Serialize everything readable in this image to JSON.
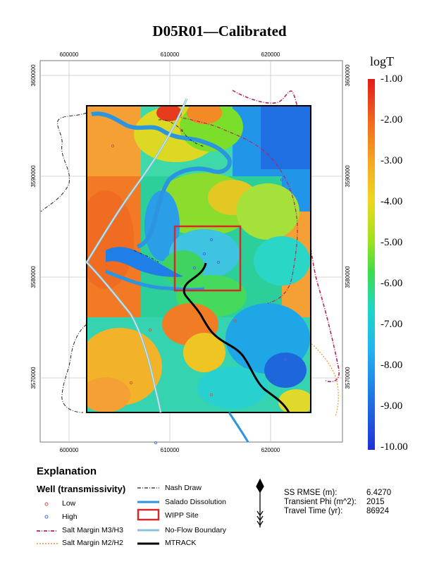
{
  "title": "D05R01—Calibrated",
  "map": {
    "x_ticks": [
      "600000",
      "610000",
      "620000"
    ],
    "y_ticks": [
      "3600000",
      "3590000",
      "3580000",
      "3570000"
    ]
  },
  "colorbar": {
    "title": "logT",
    "ticks": [
      "-1.00",
      "-2.00",
      "-3.00",
      "-4.00",
      "-5.00",
      "-6.00",
      "-7.00",
      "-8.00",
      "-9.00",
      "-10.00"
    ],
    "colors": [
      "#e41a1c",
      "#f26c1c",
      "#f5a623",
      "#eed81e",
      "#9be21f",
      "#3edc4a",
      "#1ed7c6",
      "#22b4ef",
      "#1f7fe6",
      "#2030d8"
    ]
  },
  "explanation": {
    "title": "Explanation",
    "well_title": "Well (transmissivity)",
    "low": "Low",
    "high": "High",
    "salt_m3": "Salt Margin M3/H3",
    "salt_m2": "Salt Margin M2/H2",
    "nash_draw": "Nash Draw",
    "salado": "Salado Dissolution",
    "wipp_site": "WIPP Site",
    "no_flow": "No-Flow Boundary",
    "mtrack": "MTRACK"
  },
  "stats": {
    "rmse_label": "SS RMSE (m):",
    "rmse_value": "6.4270",
    "phi_label": "Transient Phi (m^2):",
    "phi_value": "2015",
    "travel_label": "Travel Time (yr):",
    "travel_value": "86924"
  }
}
